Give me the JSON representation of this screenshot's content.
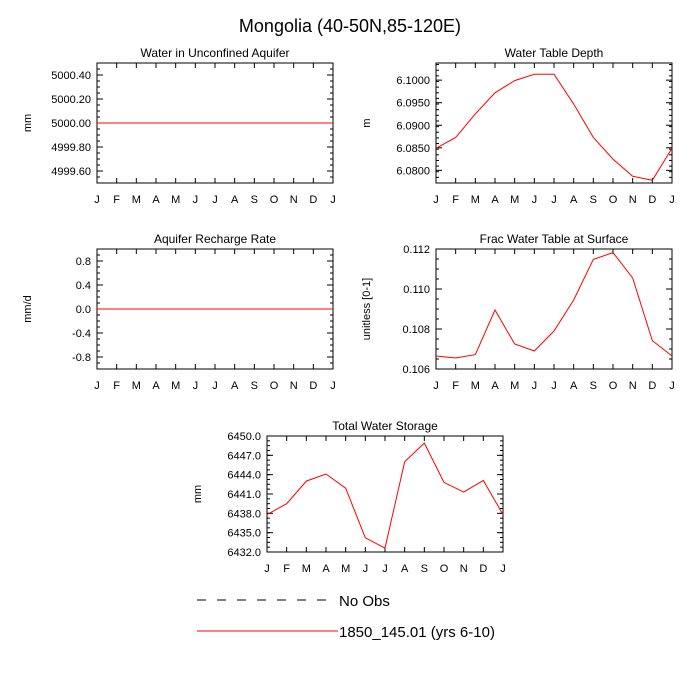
{
  "figure_title": "Mongolia (40-50N,85-120E)",
  "colors": {
    "series": "#ff0000",
    "axes": "#000000"
  },
  "legend": [
    {
      "label": "No Obs",
      "style": "dashed",
      "color": "#000000"
    },
    {
      "label": "1850_145.01 (yrs 6-10)",
      "style": "solid",
      "color": "#ff0000"
    }
  ],
  "chart_data": [
    {
      "type": "line",
      "title": "Water in Unconfined Aquifer",
      "ylabel": "mm",
      "x_tick_labels": [
        "J",
        "F",
        "M",
        "A",
        "M",
        "J",
        "J",
        "A",
        "S",
        "O",
        "N",
        "D",
        "J"
      ],
      "ylim": [
        4999.5,
        5000.5
      ],
      "yticks": [
        4999.6,
        4999.8,
        5000.0,
        5000.2,
        5000.4
      ],
      "ytick_labels": [
        "4999.60",
        "4999.80",
        "5000.00",
        "5000.20",
        "5000.40"
      ],
      "series": [
        {
          "name": "1850_145.01 (yrs 6-10)",
          "values": [
            5000,
            5000,
            5000,
            5000,
            5000,
            5000,
            5000,
            5000,
            5000,
            5000,
            5000,
            5000,
            5000
          ]
        }
      ]
    },
    {
      "type": "line",
      "title": "Water Table Depth",
      "ylabel": "m",
      "x_tick_labels": [
        "J",
        "F",
        "M",
        "A",
        "M",
        "J",
        "J",
        "A",
        "S",
        "O",
        "N",
        "D",
        "J"
      ],
      "ylim": [
        6.0772,
        6.1038
      ],
      "yticks": [
        6.08,
        6.085,
        6.09,
        6.095,
        6.1
      ],
      "ytick_labels": [
        "6.0800",
        "6.0850",
        "6.0900",
        "6.0950",
        "6.1000"
      ],
      "series": [
        {
          "name": "1850_145.01 (yrs 6-10)",
          "values": [
            6.0849,
            6.0873,
            6.0925,
            6.0972,
            6.0999,
            6.1013,
            6.1013,
            6.0947,
            6.0873,
            6.0825,
            6.0787,
            6.0778,
            6.0849
          ]
        }
      ]
    },
    {
      "type": "line",
      "title": "Aquifer Recharge Rate",
      "ylabel": "mm/d",
      "x_tick_labels": [
        "J",
        "F",
        "M",
        "A",
        "M",
        "J",
        "J",
        "A",
        "S",
        "O",
        "N",
        "D",
        "J"
      ],
      "ylim": [
        -1.0,
        1.0
      ],
      "yticks": [
        -0.8,
        -0.4,
        0.0,
        0.4,
        0.8
      ],
      "ytick_labels": [
        "-0.8",
        "-0.4",
        "0.0",
        "0.4",
        "0.8"
      ],
      "series": [
        {
          "name": "1850_145.01 (yrs 6-10)",
          "values": [
            0,
            0,
            0,
            0,
            0,
            0,
            0,
            0,
            0,
            0,
            0,
            0,
            0
          ]
        }
      ]
    },
    {
      "type": "line",
      "title": "Frac Water Table at Surface",
      "ylabel": "unitless [0-1]",
      "x_tick_labels": [
        "J",
        "F",
        "M",
        "A",
        "M",
        "J",
        "J",
        "A",
        "S",
        "O",
        "N",
        "D",
        "J"
      ],
      "ylim": [
        0.106,
        0.112
      ],
      "yticks": [
        0.106,
        0.108,
        0.11,
        0.112
      ],
      "ytick_labels": [
        "0.106",
        "0.108",
        "0.110",
        "0.112"
      ],
      "series": [
        {
          "name": "1850_145.01 (yrs 6-10)",
          "values": [
            0.10665,
            0.10655,
            0.10672,
            0.10895,
            0.10725,
            0.1069,
            0.1079,
            0.10945,
            0.11148,
            0.11182,
            0.11055,
            0.10742,
            0.10665
          ]
        }
      ]
    },
    {
      "type": "line",
      "title": "Total Water Storage",
      "ylabel": "mm",
      "x_tick_labels": [
        "J",
        "F",
        "M",
        "A",
        "M",
        "J",
        "J",
        "A",
        "S",
        "O",
        "N",
        "D",
        "J"
      ],
      "ylim": [
        6432.0,
        6450.0
      ],
      "yticks": [
        6432.0,
        6435.0,
        6438.0,
        6441.0,
        6444.0,
        6447.0,
        6450.0
      ],
      "ytick_labels": [
        "6432.0",
        "6435.0",
        "6438.0",
        "6441.0",
        "6444.0",
        "6447.0",
        "6450.0"
      ],
      "series": [
        {
          "name": "1850_145.01 (yrs 6-10)",
          "values": [
            6437.8,
            6439.5,
            6443.0,
            6444.1,
            6441.9,
            6434.2,
            6432.6,
            6446.0,
            6448.9,
            6442.8,
            6441.3,
            6443.1,
            6437.8
          ]
        }
      ]
    }
  ]
}
